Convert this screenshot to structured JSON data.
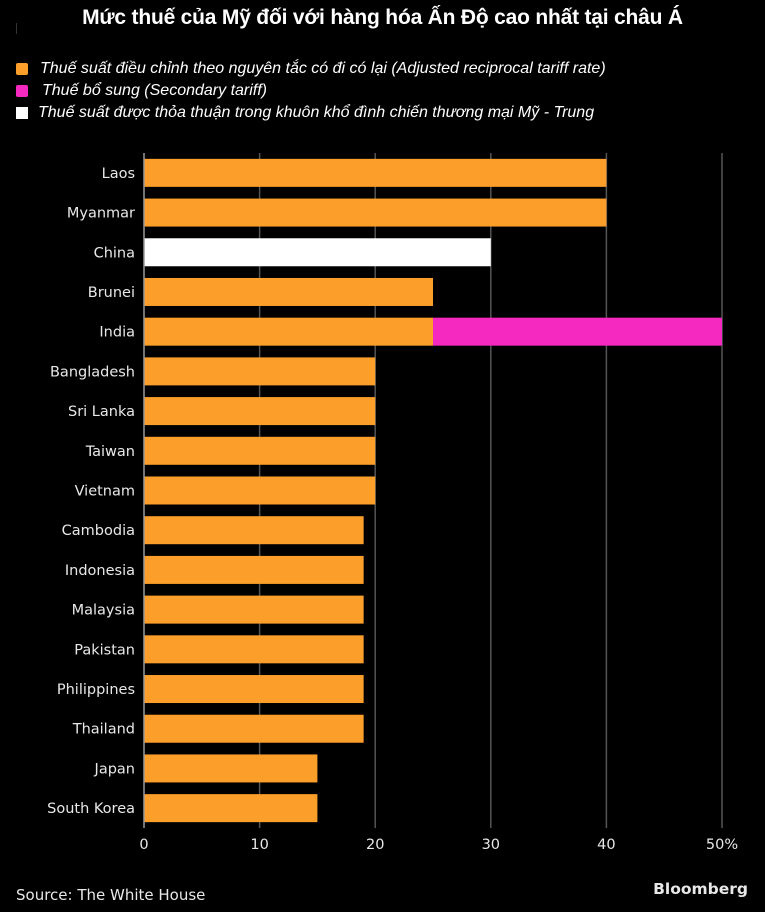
{
  "chart_data": {
    "type": "bar",
    "orientation": "horizontal",
    "stacked": true,
    "title": "Mức thuế của Mỹ đối với hàng hóa Ấn Độ cao nhất tại châu Á",
    "xlabel": "",
    "ylabel": "",
    "xlim": [
      0,
      50
    ],
    "x_ticks": [
      0,
      10,
      20,
      30,
      40,
      50
    ],
    "x_tick_labels": [
      "0",
      "10",
      "20",
      "30",
      "40",
      "50%"
    ],
    "grid": true,
    "legend_position": "top-left",
    "categories": [
      "Laos",
      "Myanmar",
      "China",
      "Brunei",
      "India",
      "Bangladesh",
      "Sri Lanka",
      "Taiwan",
      "Vietnam",
      "Cambodia",
      "Indonesia",
      "Malaysia",
      "Pakistan",
      "Philippines",
      "Thailand",
      "Japan",
      "South Korea"
    ],
    "series": [
      {
        "name": "Thuế suất điều chỉnh theo nguyên tắc có đi có lại (Adjusted reciprocal tariff rate)",
        "color": "#fc9f2a",
        "values": [
          40,
          40,
          0,
          25,
          25,
          20,
          20,
          20,
          20,
          19,
          19,
          19,
          19,
          19,
          19,
          15,
          15
        ]
      },
      {
        "name": "Thuế bổ sung (Secondary tariff)",
        "color": "#f529c0",
        "values": [
          0,
          0,
          0,
          0,
          25,
          0,
          0,
          0,
          0,
          0,
          0,
          0,
          0,
          0,
          0,
          0,
          0
        ]
      },
      {
        "name": "Thuế suất được thỏa thuận trong khuôn khổ đình chiến thương mại Mỹ - Trung",
        "color": "#ffffff",
        "values": [
          0,
          0,
          30,
          0,
          0,
          0,
          0,
          0,
          0,
          0,
          0,
          0,
          0,
          0,
          0,
          0,
          0
        ]
      }
    ]
  },
  "colors": {
    "background": "#000000",
    "gridline": "#555555",
    "axis": "#9a9a9a"
  },
  "footer": {
    "source": "Source: The White House",
    "brand": "Bloomberg"
  }
}
